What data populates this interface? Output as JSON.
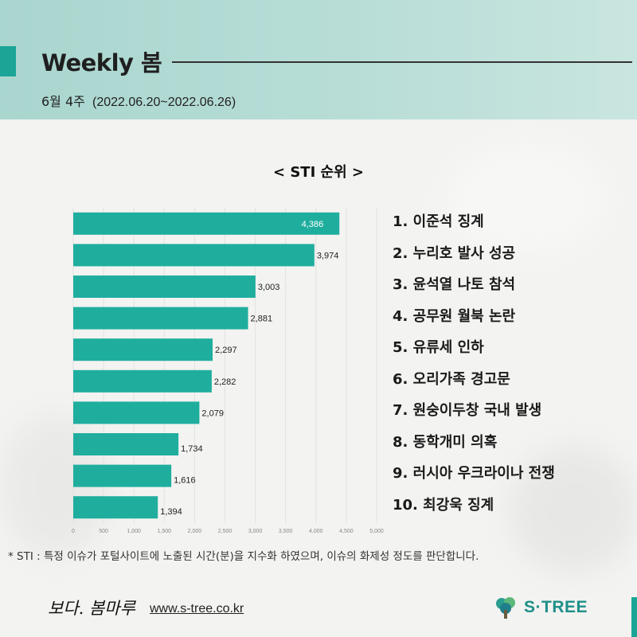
{
  "header": {
    "title": "Weekly 봄",
    "week": "6월 4주",
    "range": "(2022.06.20~2022.06.26)"
  },
  "section_title": "< STI 순위 >",
  "ranking": [
    "1. 이준석 징계",
    "2. 누리호 발사 성공",
    "3. 윤석열 나토 참석",
    "4. 공무원 월북 논란",
    "5. 유류세 인하",
    "6. 오리가족 경고문",
    "7. 원숭이두창 국내 발생",
    "8. 동학개미 의혹",
    "9. 러시아 우크라이나 전쟁",
    "10. 최강욱 징계"
  ],
  "chart_data": {
    "type": "bar",
    "orientation": "horizontal",
    "values": [
      4386,
      3974,
      3003,
      2881,
      2297,
      2282,
      2079,
      1734,
      1616,
      1394
    ],
    "value_labels": [
      "4,386",
      "3,974",
      "3,003",
      "2,881",
      "2,297",
      "2,282",
      "2,079",
      "1,734",
      "1,616",
      "1,394"
    ],
    "x_ticks": [
      0,
      500,
      1000,
      1500,
      2000,
      2500,
      3000,
      3500,
      4000,
      4500,
      5000
    ],
    "x_tick_labels": [
      "0",
      "500",
      "1,000",
      "1,500",
      "2,000",
      "2,500",
      "3,000",
      "3,500",
      "4,000",
      "4,500",
      "5,000"
    ],
    "xlim": [
      0,
      5000
    ],
    "grid": true,
    "bar_color": "#1fae9e"
  },
  "note": "* STI : 특정 이슈가 포털사이트에 노출된 시간(분)을 지수화 하였으며, 이슈의 화제성 정도를 판단합니다.",
  "footer": {
    "logo_text": "보다. 봄마루",
    "url": "www.s-tree.co.kr",
    "brand": "S·TREE"
  },
  "colors": {
    "accent": "#1aa597",
    "bar": "#1fae9e",
    "brand": "#1e8f88"
  }
}
